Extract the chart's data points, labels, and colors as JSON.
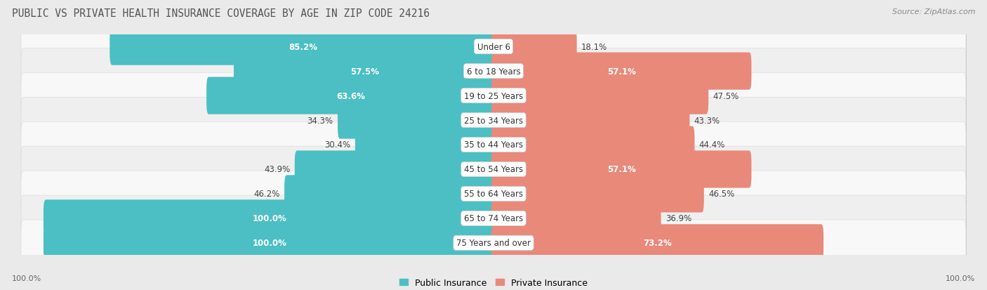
{
  "title": "PUBLIC VS PRIVATE HEALTH INSURANCE COVERAGE BY AGE IN ZIP CODE 24216",
  "source": "Source: ZipAtlas.com",
  "categories": [
    "Under 6",
    "6 to 18 Years",
    "19 to 25 Years",
    "25 to 34 Years",
    "35 to 44 Years",
    "45 to 54 Years",
    "55 to 64 Years",
    "65 to 74 Years",
    "75 Years and over"
  ],
  "public_values": [
    85.2,
    57.5,
    63.6,
    34.3,
    30.4,
    43.9,
    46.2,
    100.0,
    100.0
  ],
  "private_values": [
    18.1,
    57.1,
    47.5,
    43.3,
    44.4,
    57.1,
    46.5,
    36.9,
    73.2
  ],
  "public_color": "#4BBFC3",
  "private_color": "#E8897A",
  "public_label": "Public Insurance",
  "private_label": "Private Insurance",
  "bg_color": "#eaeaea",
  "row_bg_odd": "#f8f8f8",
  "row_bg_even": "#efefef",
  "bar_height": 0.52,
  "title_fontsize": 10.5,
  "source_fontsize": 8,
  "label_fontsize": 8.5,
  "category_fontsize": 8.5,
  "footer_label": "100.0%"
}
